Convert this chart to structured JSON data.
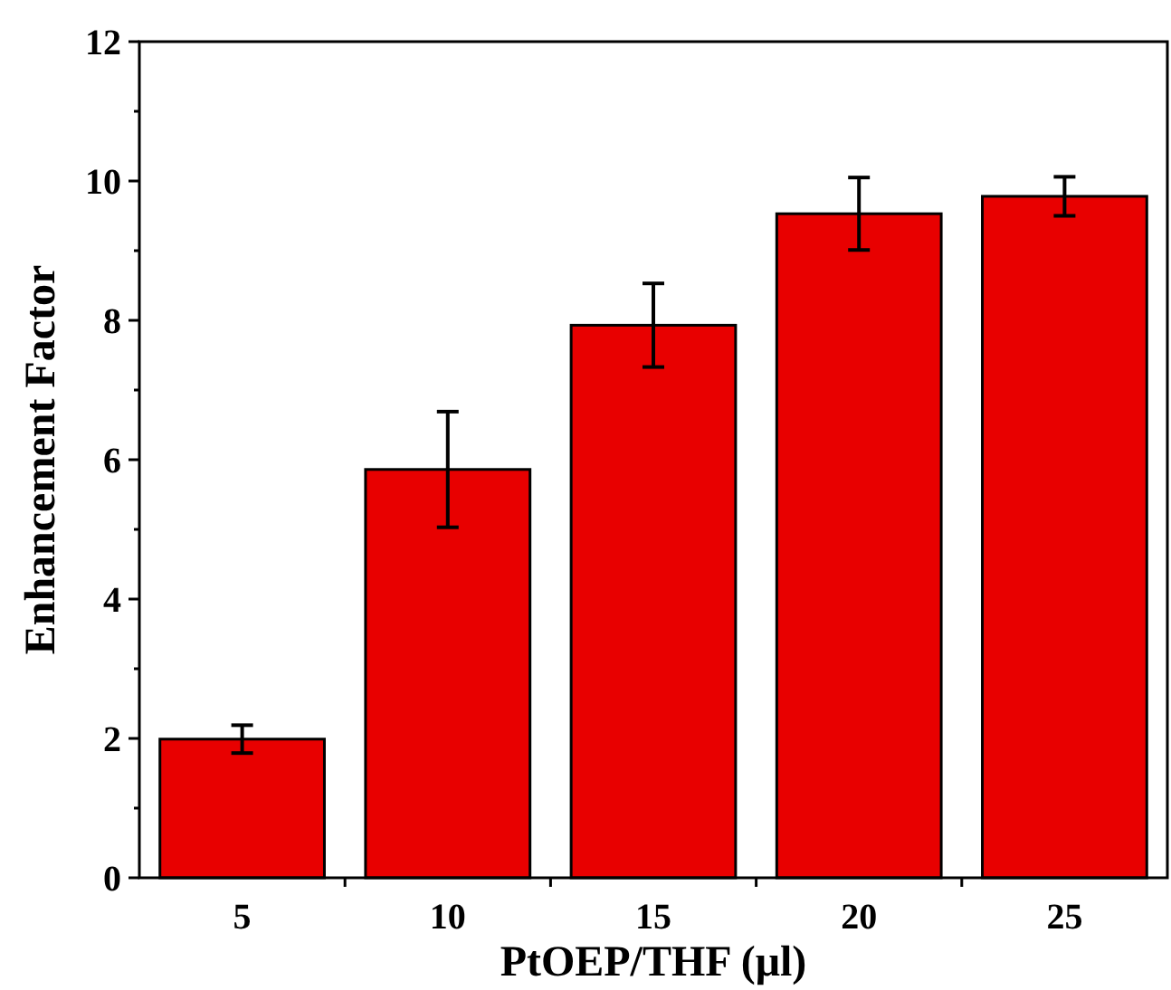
{
  "chart_data": {
    "type": "bar",
    "xlabel": "PtOEP/THF (μl)",
    "ylabel": "Enhancement Factor",
    "categories": [
      "5",
      "10",
      "15",
      "20",
      "25"
    ],
    "values": [
      1.99,
      5.86,
      7.93,
      9.53,
      9.78
    ],
    "errors": [
      0.2,
      0.83,
      0.6,
      0.52,
      0.28
    ],
    "color": "#e80000",
    "ylim": [
      0,
      12
    ],
    "yticks": [
      0,
      2,
      4,
      6,
      8,
      10,
      12
    ],
    "grid": false
  }
}
